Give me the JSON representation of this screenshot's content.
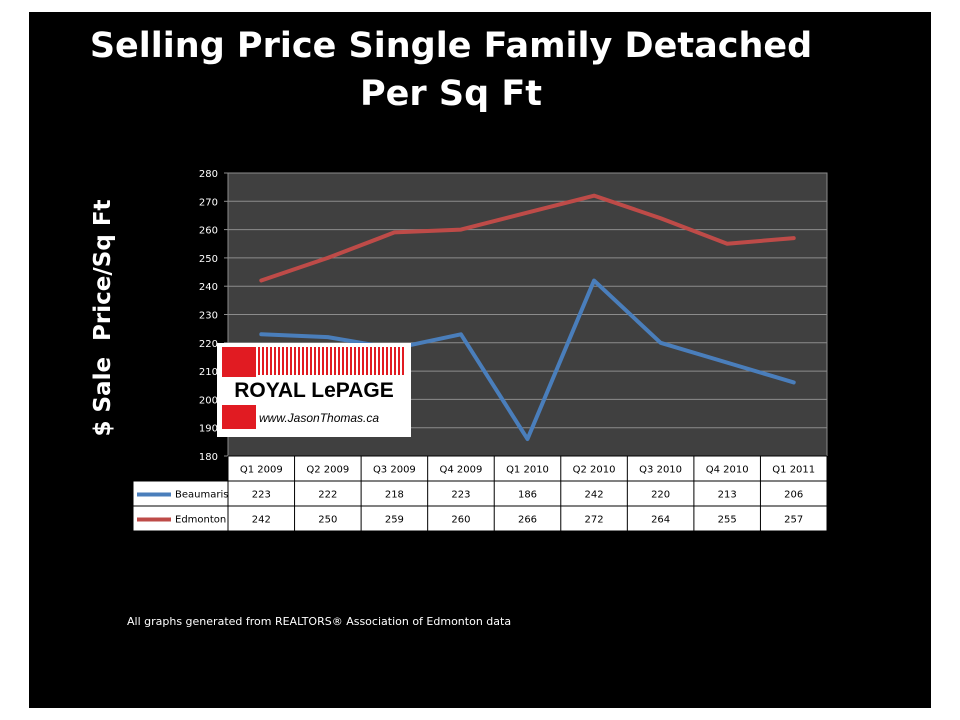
{
  "title": {
    "line1": "Selling Price Single Family Detached",
    "line2": "Per Sq Ft"
  },
  "footnote": "All graphs generated from REALTORS® Association of Edmonton data",
  "logo": {
    "brand": "ROYAL LePAGE",
    "url": "www.JasonThomas.ca"
  },
  "chart_data": {
    "type": "line",
    "ylabel": "$ Sale  Price/Sq Ft",
    "ylim": [
      180,
      280
    ],
    "yticks": [
      180,
      190,
      200,
      210,
      220,
      230,
      240,
      250,
      260,
      270,
      280
    ],
    "grid": true,
    "categories": [
      "Q1 2009",
      "Q2 2009",
      "Q3 2009",
      "Q4 2009",
      "Q1 2010",
      "Q2 2010",
      "Q3 2010",
      "Q4 2010",
      "Q1 2011"
    ],
    "series": [
      {
        "name": "Beaumaris",
        "color": "#4a7ebb",
        "values": [
          223,
          222,
          218,
          223,
          186,
          242,
          220,
          213,
          206
        ]
      },
      {
        "name": "Edmonton",
        "color": "#be4b48",
        "values": [
          242,
          250,
          259,
          260,
          266,
          272,
          264,
          255,
          257
        ]
      }
    ],
    "data_table": true
  }
}
